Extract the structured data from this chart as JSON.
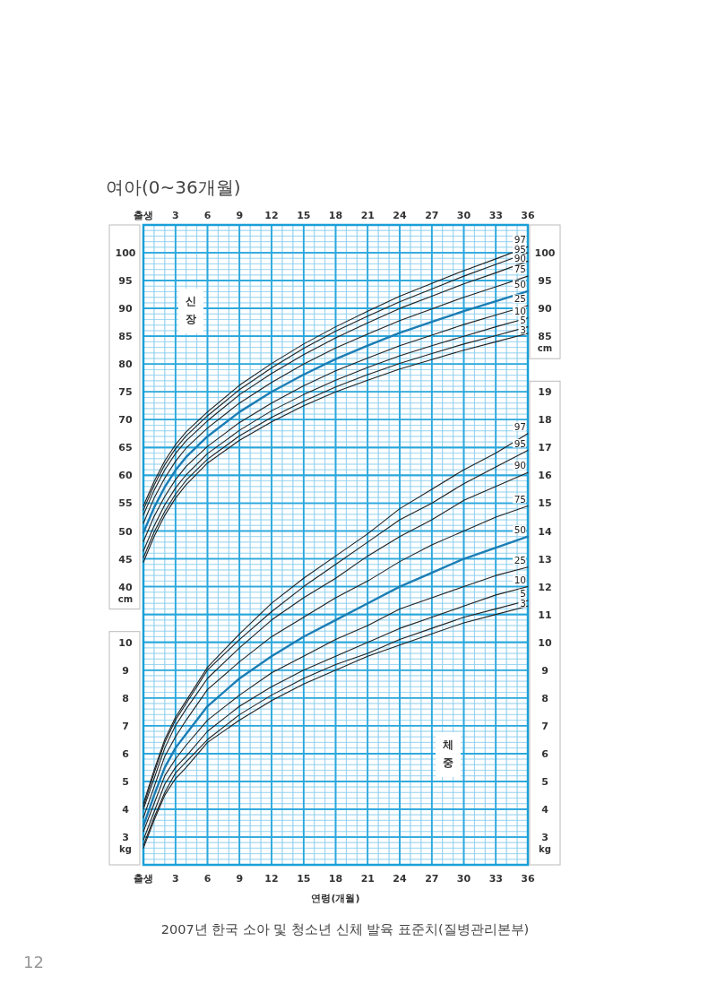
{
  "chart_data": [
    {
      "type": "line",
      "title": "여아(0~36개월)",
      "ylabel": "cm",
      "y2label": "cm",
      "annotations": [
        "신장"
      ],
      "grid": true,
      "xlim": [
        0,
        36
      ],
      "xticks": [
        {
          "value": 0,
          "label": "출생"
        },
        3,
        6,
        9,
        12,
        15,
        18,
        21,
        24,
        27,
        30,
        33,
        36
      ],
      "ylim": [
        -10,
        105
      ],
      "yticks": [
        40,
        45,
        50,
        55,
        60,
        65,
        70,
        75,
        80,
        85,
        90,
        95,
        100
      ],
      "y2lim": [
        -10,
        105
      ],
      "y2ticks": [
        85,
        90,
        95,
        100
      ],
      "x": [
        0,
        1,
        2,
        3,
        4,
        6,
        9,
        12,
        15,
        18,
        21,
        24,
        27,
        30,
        33,
        36
      ],
      "series": [
        {
          "name": "97",
          "color": "#222222",
          "values": [
            54.5,
            58.9,
            62.6,
            65.5,
            67.8,
            71.4,
            76.2,
            80.1,
            83.6,
            86.7,
            89.5,
            92.2,
            94.5,
            96.8,
            98.9,
            101.1
          ]
        },
        {
          "name": "95",
          "color": "#222222",
          "values": [
            53.8,
            58.2,
            61.9,
            64.8,
            67.1,
            70.7,
            75.4,
            79.3,
            82.8,
            85.9,
            88.6,
            91.2,
            93.5,
            95.8,
            97.9,
            100.0
          ]
        },
        {
          "name": "90",
          "color": "#222222",
          "values": [
            52.9,
            57.3,
            61.0,
            63.9,
            66.2,
            69.8,
            74.5,
            78.3,
            81.7,
            84.7,
            87.4,
            90.0,
            92.2,
            94.4,
            96.4,
            98.5
          ]
        },
        {
          "name": "75",
          "color": "#222222",
          "values": [
            51.4,
            55.9,
            59.5,
            62.5,
            64.9,
            68.5,
            73.0,
            76.7,
            80.0,
            82.9,
            85.4,
            87.8,
            89.9,
            92.0,
            93.9,
            95.8
          ]
        },
        {
          "name": "50",
          "color": "#1b7db4",
          "values": [
            49.7,
            54.2,
            57.9,
            60.9,
            63.3,
            67.0,
            71.4,
            75.0,
            78.1,
            80.9,
            83.3,
            85.6,
            87.6,
            89.5,
            91.3,
            93.1
          ]
        },
        {
          "name": "25",
          "color": "#222222",
          "values": [
            48.1,
            52.6,
            56.2,
            59.2,
            61.6,
            65.2,
            69.5,
            73.0,
            76.1,
            78.8,
            81.1,
            83.3,
            85.2,
            87.1,
            88.8,
            90.5
          ]
        },
        {
          "name": "10",
          "color": "#222222",
          "values": [
            46.4,
            50.9,
            54.7,
            57.7,
            60.1,
            63.9,
            68.1,
            71.6,
            74.5,
            77.1,
            79.4,
            81.5,
            83.3,
            85.0,
            86.7,
            88.3
          ]
        },
        {
          "name": "5",
          "color": "#222222",
          "values": [
            45.2,
            49.8,
            53.5,
            56.6,
            59.1,
            62.9,
            67.1,
            70.4,
            73.3,
            75.9,
            78.1,
            80.1,
            81.9,
            83.6,
            85.1,
            86.7
          ]
        },
        {
          "name": "3",
          "color": "#222222",
          "values": [
            44.4,
            49.0,
            52.8,
            55.9,
            58.3,
            62.2,
            66.3,
            69.6,
            72.5,
            75.0,
            77.1,
            79.1,
            80.8,
            82.5,
            84.0,
            85.5
          ]
        }
      ]
    },
    {
      "type": "line",
      "xlabel": "연령(개월)",
      "ylabel": "kg",
      "y2label": "kg",
      "annotations": [
        "체중",
        "2007년 한국 소아 및 청소년 신체 발육 표준치(질병관리본부)",
        "12"
      ],
      "grid": true,
      "xlim": [
        0,
        36
      ],
      "xticks": [
        {
          "value": 0,
          "label": "출생"
        },
        3,
        6,
        9,
        12,
        15,
        18,
        21,
        24,
        27,
        30,
        33,
        36
      ],
      "ylim": [
        2,
        25
      ],
      "yticks": [
        3,
        4,
        5,
        6,
        7,
        8,
        9,
        10
      ],
      "y2lim": [
        2,
        25
      ],
      "y2ticks": [
        3,
        4,
        5,
        6,
        7,
        8,
        9,
        10,
        11,
        12,
        13,
        14,
        15,
        16,
        17,
        18,
        19
      ],
      "x": [
        0,
        1,
        2,
        3,
        4,
        6,
        9,
        12,
        15,
        18,
        21,
        24,
        27,
        30,
        33,
        36
      ],
      "series": [
        {
          "name": "97",
          "color": "#222222",
          "values": [
            4.2,
            5.4,
            6.5,
            7.3,
            7.9,
            9.1,
            10.3,
            11.4,
            12.3,
            13.1,
            13.9,
            14.8,
            15.5,
            16.2,
            16.8,
            17.5
          ]
        },
        {
          "name": "95",
          "color": "#222222",
          "values": [
            4.1,
            5.3,
            6.4,
            7.2,
            7.8,
            9.0,
            10.1,
            11.1,
            12.0,
            12.8,
            13.6,
            14.4,
            15.0,
            15.7,
            16.3,
            16.9
          ]
        },
        {
          "name": "90",
          "color": "#222222",
          "values": [
            4.0,
            5.1,
            6.2,
            7.0,
            7.6,
            8.7,
            9.8,
            10.8,
            11.6,
            12.3,
            13.1,
            13.8,
            14.4,
            15.1,
            15.6,
            16.1
          ]
        },
        {
          "name": "75",
          "color": "#222222",
          "values": [
            3.7,
            4.8,
            5.9,
            6.6,
            7.2,
            8.3,
            9.3,
            10.2,
            10.9,
            11.6,
            12.2,
            12.9,
            13.5,
            14.0,
            14.5,
            14.9
          ]
        },
        {
          "name": "50",
          "color": "#1b7db4",
          "values": [
            3.4,
            4.5,
            5.5,
            6.2,
            6.7,
            7.7,
            8.7,
            9.5,
            10.2,
            10.8,
            11.4,
            12.0,
            12.5,
            13.0,
            13.4,
            13.8
          ]
        },
        {
          "name": "25",
          "color": "#222222",
          "values": [
            3.2,
            4.2,
            5.2,
            5.8,
            6.3,
            7.2,
            8.1,
            8.9,
            9.5,
            10.1,
            10.6,
            11.2,
            11.6,
            12.0,
            12.4,
            12.7
          ]
        },
        {
          "name": "10",
          "color": "#222222",
          "values": [
            2.9,
            3.9,
            4.9,
            5.5,
            5.9,
            6.8,
            7.7,
            8.4,
            9.0,
            9.5,
            10.0,
            10.5,
            10.9,
            11.3,
            11.7,
            12.0
          ]
        },
        {
          "name": "5",
          "color": "#222222",
          "values": [
            2.7,
            3.7,
            4.6,
            5.3,
            5.7,
            6.5,
            7.4,
            8.1,
            8.7,
            9.2,
            9.6,
            10.1,
            10.5,
            10.9,
            11.2,
            11.5
          ]
        },
        {
          "name": "3",
          "color": "#222222",
          "values": [
            2.6,
            3.6,
            4.5,
            5.1,
            5.5,
            6.4,
            7.2,
            7.9,
            8.5,
            9.0,
            9.5,
            9.9,
            10.3,
            10.7,
            11.0,
            11.3
          ]
        }
      ]
    }
  ]
}
